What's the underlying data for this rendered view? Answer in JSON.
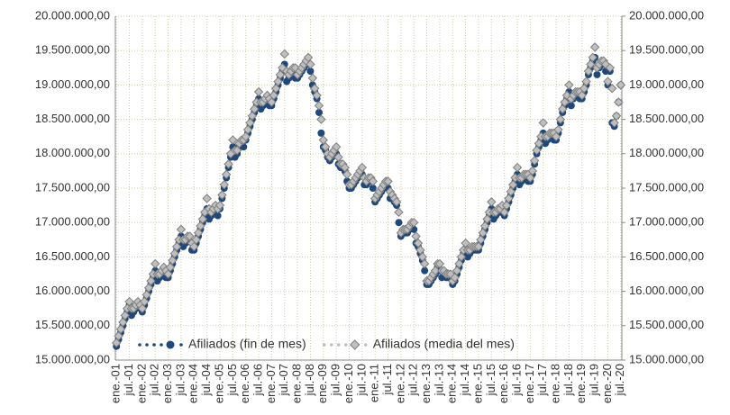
{
  "chart_data": {
    "type": "scatter",
    "categories": [
      "ene.-01",
      null,
      null,
      null,
      null,
      null,
      "jul.-01",
      null,
      null,
      null,
      null,
      null,
      "ene.-02",
      null,
      null,
      null,
      null,
      null,
      "jul.-02",
      null,
      null,
      null,
      null,
      null,
      "ene.-03",
      null,
      null,
      null,
      null,
      null,
      "jul.-03",
      null,
      null,
      null,
      null,
      null,
      "ene.-04",
      null,
      null,
      null,
      null,
      null,
      "jul.-04",
      null,
      null,
      null,
      null,
      null,
      "ene.-05",
      null,
      null,
      null,
      null,
      null,
      "jul.-05",
      null,
      null,
      null,
      null,
      null,
      "ene.-06",
      null,
      null,
      null,
      null,
      null,
      "jul.-06",
      null,
      null,
      null,
      null,
      null,
      "ene.-07",
      null,
      null,
      null,
      null,
      null,
      "jul.-07",
      null,
      null,
      null,
      null,
      null,
      "ene.-08",
      null,
      null,
      null,
      null,
      null,
      "jul.-08",
      null,
      null,
      null,
      null,
      null,
      "ene.-09",
      null,
      null,
      null,
      null,
      null,
      "jul.-09",
      null,
      null,
      null,
      null,
      null,
      "ene.-10",
      null,
      null,
      null,
      null,
      null,
      "jul.-10",
      null,
      null,
      null,
      null,
      null,
      "ene.-11",
      null,
      null,
      null,
      null,
      null,
      "jul.-11",
      null,
      null,
      null,
      null,
      null,
      "ene.-12",
      null,
      null,
      null,
      null,
      null,
      "jul.-12",
      null,
      null,
      null,
      null,
      null,
      "ene.-13",
      null,
      null,
      null,
      null,
      null,
      "jul.-13",
      null,
      null,
      null,
      null,
      null,
      "ene.-14",
      null,
      null,
      null,
      null,
      null,
      "jul.-14",
      null,
      null,
      null,
      null,
      null,
      "ene.-15",
      null,
      null,
      null,
      null,
      null,
      "jul.-15",
      null,
      null,
      null,
      null,
      null,
      "ene.-16",
      null,
      null,
      null,
      null,
      null,
      "jul.-16",
      null,
      null,
      null,
      null,
      null,
      "ene.-17",
      null,
      null,
      null,
      null,
      null,
      "jul.-17",
      null,
      null,
      null,
      null,
      null,
      "ene.-18",
      null,
      null,
      null,
      null,
      null,
      "jul.-18",
      null,
      null,
      null,
      null,
      null,
      "ene.-19",
      null,
      null,
      null,
      null,
      null,
      "jul.-19",
      null,
      null,
      null,
      null,
      null,
      "ene.-20",
      null,
      null,
      null,
      null,
      null,
      "jul.-20"
    ],
    "series": [
      {
        "name": "Afiliados (fin de mes)",
        "color": "#1f497d",
        "marker": "circle",
        "values": [
          15200000,
          15300000,
          15400000,
          15500000,
          15600000,
          15700000,
          15800000,
          15650000,
          15700000,
          15750000,
          15780000,
          15750000,
          15700000,
          15800000,
          15900000,
          16000000,
          16100000,
          16200000,
          16300000,
          16150000,
          16200000,
          16250000,
          16270000,
          16200000,
          16200000,
          16300000,
          16400000,
          16500000,
          16600000,
          16700000,
          16800000,
          16650000,
          16700000,
          16750000,
          16720000,
          16600000,
          16600000,
          16700000,
          16800000,
          16900000,
          17000000,
          17100000,
          17200000,
          17050000,
          17100000,
          17150000,
          17180000,
          17100000,
          17200000,
          17350000,
          17500000,
          17650000,
          17800000,
          17950000,
          18100000,
          17950000,
          18000000,
          18100000,
          18150000,
          18100000,
          18200000,
          18300000,
          18400000,
          18500000,
          18600000,
          18700000,
          18800000,
          18650000,
          18700000,
          18750000,
          18780000,
          18700000,
          18700000,
          18800000,
          18900000,
          19000000,
          19100000,
          19200000,
          19300000,
          19050000,
          19100000,
          19150000,
          19180000,
          19100000,
          19100000,
          19150000,
          19200000,
          19250000,
          19300000,
          19300000,
          19200000,
          19000000,
          18900000,
          18800000,
          18600000,
          18300000,
          18100000,
          18050000,
          17950000,
          17900000,
          17950000,
          18000000,
          18000000,
          17850000,
          17800000,
          17800000,
          17750000,
          17600000,
          17500000,
          17500000,
          17550000,
          17600000,
          17650000,
          17700000,
          17700000,
          17550000,
          17550000,
          17600000,
          17600000,
          17500000,
          17300000,
          17350000,
          17400000,
          17450000,
          17500000,
          17550000,
          17500000,
          17350000,
          17350000,
          17300000,
          17250000,
          17000000,
          16800000,
          16850000,
          16850000,
          16850000,
          16900000,
          16950000,
          16900000,
          16700000,
          16650000,
          16550000,
          16450000,
          16300000,
          16100000,
          16100000,
          16150000,
          16200000,
          16250000,
          16350000,
          16300000,
          16200000,
          16250000,
          16200000,
          16200000,
          16200000,
          16100000,
          16150000,
          16250000,
          16350000,
          16450000,
          16550000,
          16600000,
          16500000,
          16550000,
          16600000,
          16600000,
          16600000,
          16600000,
          16700000,
          16800000,
          16900000,
          17000000,
          17100000,
          17200000,
          17050000,
          17100000,
          17150000,
          17150000,
          17200000,
          17100000,
          17200000,
          17300000,
          17400000,
          17500000,
          17600000,
          17700000,
          17550000,
          17600000,
          17650000,
          17650000,
          17600000,
          17600000,
          17700000,
          17850000,
          18000000,
          18100000,
          18200000,
          18300000,
          18150000,
          18200000,
          18250000,
          18250000,
          18200000,
          18200000,
          18300000,
          18450000,
          18600000,
          18700000,
          18800000,
          18900000,
          18700000,
          18800000,
          18850000,
          18850000,
          18800000,
          18800000,
          18900000,
          19000000,
          19150000,
          19250000,
          19350000,
          19400000,
          19150000,
          19250000,
          19300000,
          19300000,
          19200000,
          19000000,
          19200000,
          18450000,
          18400000,
          18550000,
          18750000,
          19000000
        ]
      },
      {
        "name": "Afiliados (media del mes)",
        "color": "#bfbfbf",
        "marker": "diamond",
        "values": [
          15250000,
          15350000,
          15450000,
          15550000,
          15650000,
          15750000,
          15850000,
          15750000,
          15750000,
          15800000,
          15850000,
          15800000,
          15750000,
          15850000,
          15950000,
          16050000,
          16150000,
          16250000,
          16400000,
          16250000,
          16250000,
          16300000,
          16350000,
          16300000,
          16250000,
          16350000,
          16450000,
          16550000,
          16650000,
          16750000,
          16900000,
          16750000,
          16750000,
          16800000,
          16800000,
          16700000,
          16650000,
          16750000,
          16850000,
          16950000,
          17050000,
          17150000,
          17350000,
          17200000,
          17150000,
          17200000,
          17250000,
          17200000,
          17250000,
          17400000,
          17550000,
          17700000,
          17850000,
          18000000,
          18200000,
          18050000,
          18050000,
          18150000,
          18200000,
          18200000,
          18250000,
          18350000,
          18450000,
          18550000,
          18650000,
          18750000,
          18900000,
          18750000,
          18750000,
          18800000,
          18850000,
          18800000,
          18750000,
          18850000,
          18950000,
          19050000,
          19150000,
          19250000,
          19450000,
          19200000,
          19150000,
          19200000,
          19250000,
          19250000,
          19150000,
          19200000,
          19250000,
          19300000,
          19350000,
          19400000,
          19300000,
          19100000,
          18950000,
          18850000,
          18700000,
          18500000,
          18200000,
          18100000,
          18000000,
          17950000,
          18000000,
          18050000,
          18100000,
          17950000,
          17850000,
          17850000,
          17800000,
          17700000,
          17550000,
          17550000,
          17600000,
          17650000,
          17700000,
          17750000,
          17800000,
          17650000,
          17600000,
          17650000,
          17650000,
          17600000,
          17350000,
          17400000,
          17450000,
          17500000,
          17550000,
          17600000,
          17600000,
          17450000,
          17400000,
          17350000,
          17300000,
          17150000,
          16850000,
          16900000,
          16900000,
          16900000,
          16950000,
          17000000,
          17000000,
          16800000,
          16700000,
          16600000,
          16500000,
          16400000,
          16150000,
          16150000,
          16200000,
          16250000,
          16300000,
          16400000,
          16400000,
          16300000,
          16300000,
          16250000,
          16250000,
          16250000,
          16150000,
          16200000,
          16300000,
          16400000,
          16500000,
          16600000,
          16700000,
          16600000,
          16600000,
          16650000,
          16650000,
          16650000,
          16650000,
          16750000,
          16850000,
          16950000,
          17050000,
          17150000,
          17300000,
          17150000,
          17150000,
          17200000,
          17200000,
          17250000,
          17150000,
          17250000,
          17350000,
          17450000,
          17550000,
          17650000,
          17800000,
          17650000,
          17650000,
          17700000,
          17700000,
          17700000,
          17650000,
          17750000,
          17900000,
          18050000,
          18150000,
          18250000,
          18450000,
          18250000,
          18250000,
          18300000,
          18300000,
          18300000,
          18250000,
          18350000,
          18500000,
          18650000,
          18750000,
          18850000,
          19000000,
          18800000,
          18850000,
          18900000,
          18900000,
          18900000,
          18850000,
          18950000,
          19050000,
          19200000,
          19300000,
          19400000,
          19550000,
          19250000,
          19300000,
          19350000,
          19350000,
          19300000,
          19050000,
          19250000,
          18950000,
          18450000,
          18550000,
          18750000,
          19000000
        ]
      }
    ],
    "ylim": [
      15000000,
      20000000
    ],
    "yticks": [
      {
        "value": 15000000,
        "label": "15.000.000,00"
      },
      {
        "value": 15500000,
        "label": "15.500.000,00"
      },
      {
        "value": 16000000,
        "label": "16.000.000,00"
      },
      {
        "value": 16500000,
        "label": "16.500.000,00"
      },
      {
        "value": 17000000,
        "label": "17.000.000,00"
      },
      {
        "value": 17500000,
        "label": "17.500.000,00"
      },
      {
        "value": 18000000,
        "label": "18.000.000,00"
      },
      {
        "value": 18500000,
        "label": "18.500.000,00"
      },
      {
        "value": 19000000,
        "label": "19.000.000,00"
      },
      {
        "value": 19500000,
        "label": "19.500.000,00"
      },
      {
        "value": 20000000,
        "label": "20.000.000,00"
      }
    ],
    "y2lim": [
      15000000,
      20000000
    ],
    "y2ticks": [
      {
        "value": 15000000,
        "label": "15.000.000,00"
      },
      {
        "value": 15500000,
        "label": "15.500.000,00"
      },
      {
        "value": 16000000,
        "label": "16.000.000,00"
      },
      {
        "value": 16500000,
        "label": "16.500.000,00"
      },
      {
        "value": 17000000,
        "label": "17.000.000,00"
      },
      {
        "value": 17500000,
        "label": "17.500.000,00"
      },
      {
        "value": 18000000,
        "label": "18.000.000,00"
      },
      {
        "value": 18500000,
        "label": "18.500.000,00"
      },
      {
        "value": 19000000,
        "label": "19.000.000,00"
      },
      {
        "value": 19500000,
        "label": "19.500.000,00"
      },
      {
        "value": 20000000,
        "label": "20.000.000,00"
      }
    ],
    "grid": true,
    "legend": "bottom"
  }
}
